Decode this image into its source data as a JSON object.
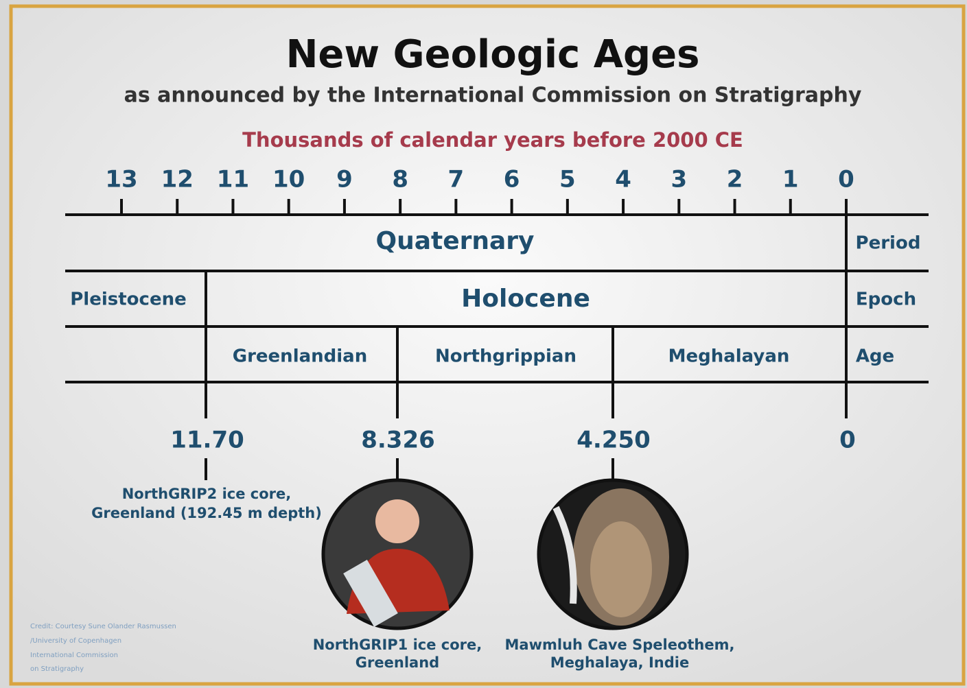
{
  "header": {
    "title": "New Geologic Ages",
    "subtitle": "as announced by the International Commission on Stratigraphy"
  },
  "axis": {
    "label": "Thousands of calendar years before 2000 CE",
    "ticks": [
      13,
      12,
      11,
      10,
      9,
      8,
      7,
      6,
      5,
      4,
      3,
      2,
      1,
      0
    ]
  },
  "rows": {
    "period": {
      "label": "Period",
      "names": [
        "Quaternary"
      ]
    },
    "epoch": {
      "label": "Epoch",
      "names": [
        "Pleistocene",
        "Holocene"
      ]
    },
    "age": {
      "label": "Age",
      "names": [
        "Greenlandian",
        "Northgrippian",
        "Meghalayan"
      ]
    }
  },
  "boundaries": [
    {
      "value": "11.70",
      "source": [
        "NorthGRIP2 ice core,",
        "Greenland (192.45 m depth)"
      ]
    },
    {
      "value": "8.326",
      "source": [
        "NorthGRIP1 ice core,",
        "Greenland"
      ]
    },
    {
      "value": "4.250",
      "source": [
        "Mawmluh Cave Speleothem,",
        "Meghalaya, Indie"
      ]
    },
    {
      "value": "0"
    }
  ],
  "credit": [
    "Credit: Courtesy Sune Olander Rasmussen",
    "/University of Copenhagen",
    "International Commission",
    "on Stratigraphy"
  ]
}
